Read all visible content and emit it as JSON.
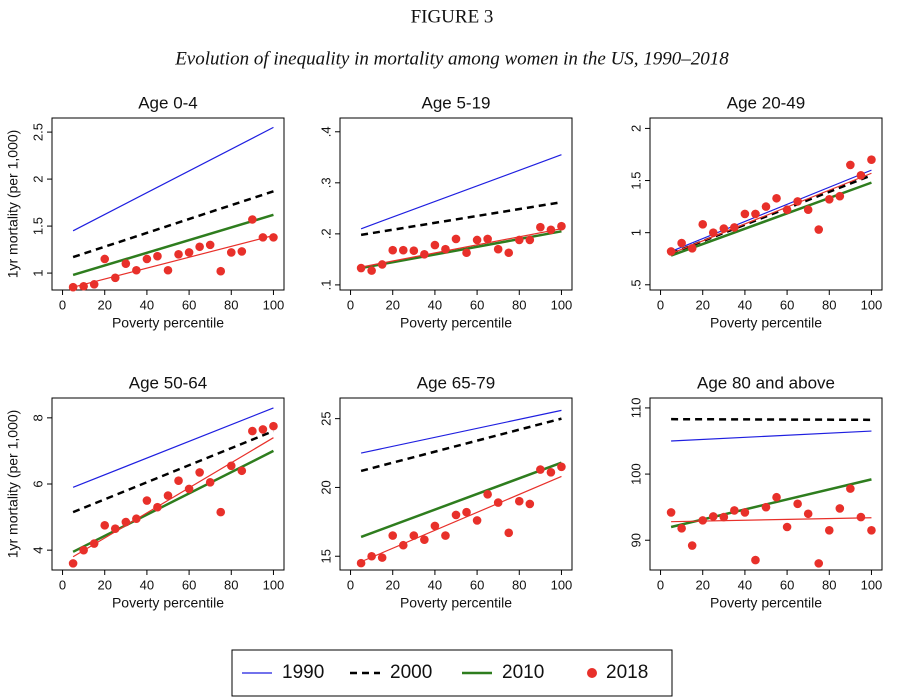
{
  "figure_label": "FIGURE 3",
  "title": "Evolution of inequality in mortality among women in the US, 1990–2018",
  "chart_data": [
    {
      "type": "line",
      "title": "Age 0-4",
      "xlabel": "Poverty percentile",
      "ylabel": "1yr mortality (per 1,000)",
      "xlim": [
        -5,
        105
      ],
      "xticks": [
        0,
        20,
        40,
        60,
        80,
        100
      ],
      "ylim": [
        0.82,
        2.65
      ],
      "yticks": [
        1,
        1.5,
        2,
        2.5
      ],
      "series": [
        {
          "name": "1990",
          "color": "#1f1fe0",
          "style": "solid",
          "width": 1.2,
          "x": [
            5,
            100
          ],
          "values": [
            1.45,
            2.55
          ]
        },
        {
          "name": "2000",
          "color": "#000000",
          "style": "dashed",
          "width": 2.5,
          "x": [
            5,
            100
          ],
          "values": [
            1.17,
            1.87
          ]
        },
        {
          "name": "2010",
          "color": "#2e7d1e",
          "style": "solid",
          "width": 2.5,
          "x": [
            5,
            100
          ],
          "values": [
            0.98,
            1.62
          ]
        },
        {
          "name": "2018",
          "color": "#e8302a",
          "style": "markers",
          "x": [
            5,
            10,
            15,
            20,
            25,
            30,
            35,
            40,
            45,
            50,
            55,
            60,
            65,
            70,
            75,
            80,
            85,
            90,
            95,
            100
          ],
          "values": [
            0.85,
            0.86,
            0.88,
            1.15,
            0.95,
            1.1,
            1.03,
            1.15,
            1.18,
            1.03,
            1.2,
            1.22,
            1.28,
            1.3,
            1.02,
            1.22,
            1.23,
            1.57,
            1.38,
            1.38
          ],
          "fit_x": [
            5,
            100
          ],
          "fit": [
            0.85,
            1.4
          ]
        }
      ]
    },
    {
      "type": "line",
      "title": "Age 5-19",
      "xlabel": "Poverty percentile",
      "xlim": [
        -5,
        105
      ],
      "xticks": [
        0,
        20,
        40,
        60,
        80,
        100
      ],
      "ylim": [
        0.09,
        0.427
      ],
      "yticks": [
        {
          "value": 0.1,
          "label": ".1"
        },
        {
          "value": 0.2,
          "label": ".2"
        },
        {
          "value": 0.3,
          "label": ".3"
        },
        {
          "value": 0.4,
          "label": ".4"
        }
      ],
      "series": [
        {
          "name": "1990",
          "color": "#1f1fe0",
          "style": "solid",
          "width": 1.2,
          "x": [
            5,
            100
          ],
          "values": [
            0.21,
            0.355
          ]
        },
        {
          "name": "2000",
          "color": "#000000",
          "style": "dashed",
          "width": 2.5,
          "x": [
            5,
            100
          ],
          "values": [
            0.198,
            0.262
          ]
        },
        {
          "name": "2010",
          "color": "#2e7d1e",
          "style": "solid",
          "width": 2.5,
          "x": [
            5,
            100
          ],
          "values": [
            0.133,
            0.205
          ]
        },
        {
          "name": "2018",
          "color": "#e8302a",
          "style": "markers",
          "x": [
            5,
            10,
            15,
            20,
            25,
            30,
            35,
            40,
            45,
            50,
            55,
            60,
            65,
            70,
            75,
            80,
            85,
            90,
            95,
            100
          ],
          "values": [
            0.133,
            0.128,
            0.14,
            0.168,
            0.168,
            0.167,
            0.16,
            0.178,
            0.17,
            0.19,
            0.163,
            0.188,
            0.19,
            0.17,
            0.163,
            0.188,
            0.188,
            0.213,
            0.208,
            0.215
          ],
          "fit_x": [
            5,
            100
          ],
          "fit": [
            0.135,
            0.21
          ]
        }
      ]
    },
    {
      "type": "line",
      "title": "Age 20-49",
      "xlabel": "Poverty percentile",
      "xlim": [
        -5,
        105
      ],
      "xticks": [
        0,
        20,
        40,
        60,
        80,
        100
      ],
      "ylim": [
        0.45,
        2.1
      ],
      "yticks": [
        {
          "value": 0.5,
          "label": ".5"
        },
        1,
        1.5,
        2
      ],
      "series": [
        {
          "name": "1990",
          "color": "#1f1fe0",
          "style": "solid",
          "width": 1.2,
          "x": [
            5,
            100
          ],
          "values": [
            0.82,
            1.6
          ]
        },
        {
          "name": "2000",
          "color": "#000000",
          "style": "dashed",
          "width": 2.5,
          "x": [
            5,
            100
          ],
          "values": [
            0.8,
            1.55
          ]
        },
        {
          "name": "2010",
          "color": "#2e7d1e",
          "style": "solid",
          "width": 2.5,
          "x": [
            5,
            100
          ],
          "values": [
            0.78,
            1.48
          ]
        },
        {
          "name": "2018",
          "color": "#e8302a",
          "style": "markers",
          "x": [
            5,
            10,
            15,
            20,
            25,
            30,
            35,
            40,
            45,
            50,
            55,
            60,
            65,
            70,
            75,
            80,
            85,
            90,
            95,
            100
          ],
          "values": [
            0.82,
            0.9,
            0.85,
            1.08,
            1.0,
            1.04,
            1.05,
            1.18,
            1.18,
            1.25,
            1.33,
            1.22,
            1.3,
            1.22,
            1.03,
            1.32,
            1.35,
            1.65,
            1.55,
            1.7
          ],
          "fit_x": [
            5,
            100
          ],
          "fit": [
            0.8,
            1.57
          ]
        }
      ]
    },
    {
      "type": "line",
      "title": "Age 50-64",
      "xlabel": "Poverty percentile",
      "ylabel": "1yr mortality (per 1,000)",
      "xlim": [
        -5,
        105
      ],
      "xticks": [
        0,
        20,
        40,
        60,
        80,
        100
      ],
      "ylim": [
        3.4,
        8.6
      ],
      "yticks": [
        4,
        6,
        8
      ],
      "series": [
        {
          "name": "1990",
          "color": "#1f1fe0",
          "style": "solid",
          "width": 1.2,
          "x": [
            5,
            100
          ],
          "values": [
            5.9,
            8.3
          ]
        },
        {
          "name": "2000",
          "color": "#000000",
          "style": "dashed",
          "width": 2.5,
          "x": [
            5,
            100
          ],
          "values": [
            5.15,
            7.6
          ]
        },
        {
          "name": "2010",
          "color": "#2e7d1e",
          "style": "solid",
          "width": 2.5,
          "x": [
            5,
            100
          ],
          "values": [
            3.95,
            7.0
          ]
        },
        {
          "name": "2018",
          "color": "#e8302a",
          "style": "markers",
          "x": [
            5,
            10,
            15,
            20,
            25,
            30,
            35,
            40,
            45,
            50,
            55,
            60,
            65,
            70,
            75,
            80,
            85,
            90,
            95,
            100
          ],
          "values": [
            3.6,
            4.0,
            4.2,
            4.75,
            4.65,
            4.85,
            4.95,
            5.5,
            5.3,
            5.65,
            6.1,
            5.85,
            6.35,
            6.05,
            5.15,
            6.55,
            6.4,
            7.6,
            7.65,
            7.75
          ],
          "fit_x": [
            5,
            100
          ],
          "fit": [
            3.8,
            7.4
          ]
        }
      ]
    },
    {
      "type": "line",
      "title": "Age 65-79",
      "xlabel": "Poverty percentile",
      "xlim": [
        -5,
        105
      ],
      "xticks": [
        0,
        20,
        40,
        60,
        80,
        100
      ],
      "ylim": [
        14,
        26.5
      ],
      "yticks": [
        15,
        20,
        25
      ],
      "series": [
        {
          "name": "1990",
          "color": "#1f1fe0",
          "style": "solid",
          "width": 1.2,
          "x": [
            5,
            100
          ],
          "values": [
            22.5,
            25.6
          ]
        },
        {
          "name": "2000",
          "color": "#000000",
          "style": "dashed",
          "width": 2.5,
          "x": [
            5,
            100
          ],
          "values": [
            21.2,
            25.0
          ]
        },
        {
          "name": "2010",
          "color": "#2e7d1e",
          "style": "solid",
          "width": 2.5,
          "x": [
            5,
            100
          ],
          "values": [
            16.4,
            21.8
          ]
        },
        {
          "name": "2018",
          "color": "#e8302a",
          "style": "markers",
          "x": [
            5,
            10,
            15,
            20,
            25,
            30,
            35,
            40,
            45,
            50,
            55,
            60,
            65,
            70,
            75,
            80,
            85,
            90,
            95,
            100
          ],
          "values": [
            14.5,
            15.0,
            14.9,
            16.5,
            15.8,
            16.5,
            16.2,
            17.2,
            16.5,
            18.0,
            18.2,
            17.6,
            19.5,
            18.9,
            16.7,
            19.0,
            18.8,
            21.3,
            21.1,
            21.5
          ],
          "fit_x": [
            5,
            100
          ],
          "fit": [
            14.6,
            20.8
          ]
        }
      ]
    },
    {
      "type": "line",
      "title": "Age 80 and above",
      "xlabel": "Poverty percentile",
      "xlim": [
        -5,
        105
      ],
      "xticks": [
        0,
        20,
        40,
        60,
        80,
        100
      ],
      "ylim": [
        85.5,
        111.5
      ],
      "yticks": [
        90,
        100,
        110
      ],
      "series": [
        {
          "name": "1990",
          "color": "#1f1fe0",
          "style": "solid",
          "width": 1.2,
          "x": [
            5,
            100
          ],
          "values": [
            105,
            106.5
          ]
        },
        {
          "name": "2000",
          "color": "#000000",
          "style": "dashed",
          "width": 2.5,
          "x": [
            5,
            100
          ],
          "values": [
            108.3,
            108.2
          ]
        },
        {
          "name": "2010",
          "color": "#2e7d1e",
          "style": "solid",
          "width": 2.5,
          "x": [
            5,
            100
          ],
          "values": [
            92,
            99.2
          ]
        },
        {
          "name": "2018",
          "color": "#e8302a",
          "style": "markers",
          "x": [
            5,
            10,
            15,
            20,
            25,
            30,
            35,
            40,
            45,
            50,
            55,
            60,
            65,
            70,
            75,
            80,
            85,
            90,
            95,
            100
          ],
          "values": [
            94.2,
            91.8,
            89.2,
            93,
            93.6,
            93.5,
            94.5,
            94.2,
            87,
            95,
            96.5,
            92,
            95.5,
            94,
            86.5,
            91.5,
            94.8,
            97.8,
            93.5,
            91.5
          ],
          "fit_x": [
            5,
            100
          ],
          "fit": [
            92.8,
            93.4
          ]
        }
      ]
    }
  ]
}
